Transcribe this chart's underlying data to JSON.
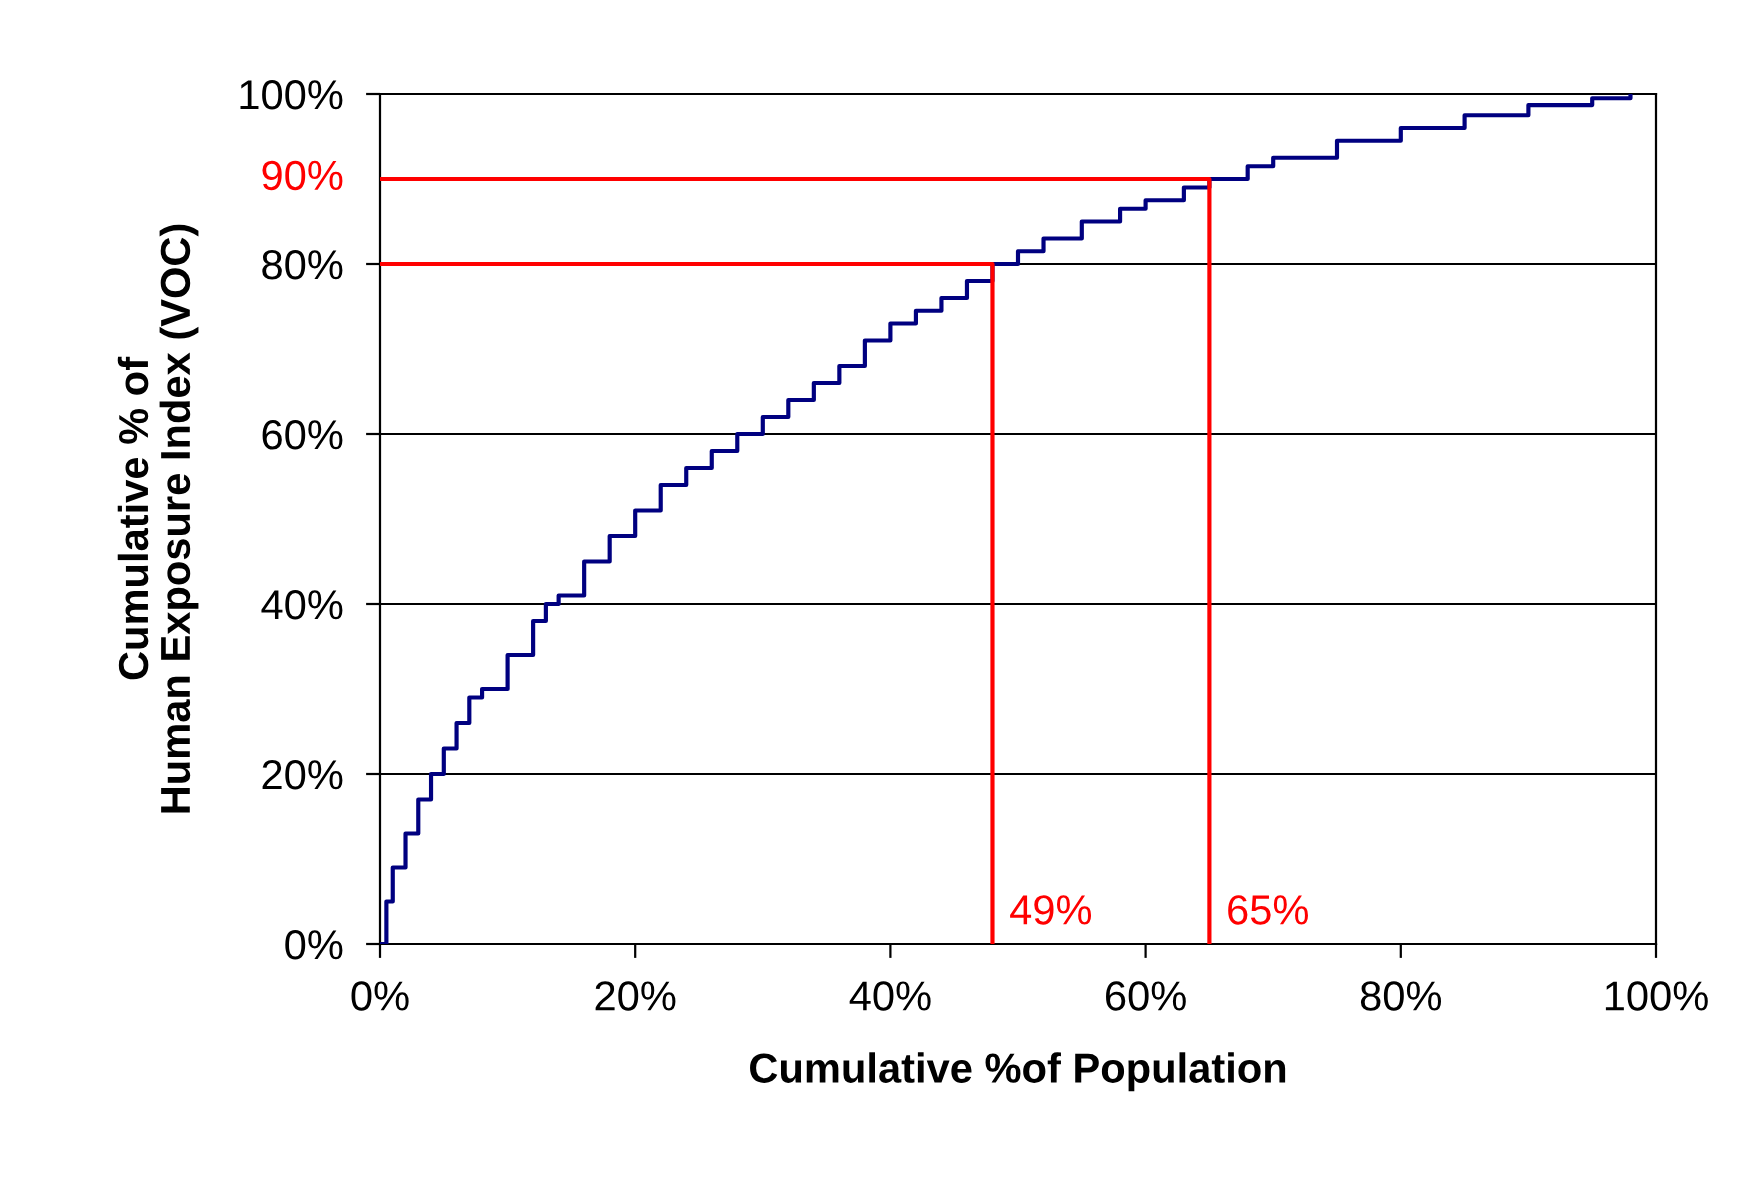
{
  "chart_data": {
    "type": "step",
    "xlabel": "Cumulative %of Population",
    "ylabel": "Cumulative % of\nHuman Exposure Index (VOC)",
    "xlim": [
      0,
      100
    ],
    "ylim": [
      0,
      100
    ],
    "xticks": [
      {
        "value": 0,
        "label": "0%"
      },
      {
        "value": 20,
        "label": "20%"
      },
      {
        "value": 40,
        "label": "40%"
      },
      {
        "value": 60,
        "label": "60%"
      },
      {
        "value": 80,
        "label": "80%"
      },
      {
        "value": 100,
        "label": "100%"
      }
    ],
    "yticks": [
      {
        "value": 0,
        "label": "0%"
      },
      {
        "value": 20,
        "label": "20%"
      },
      {
        "value": 40,
        "label": "40%"
      },
      {
        "value": 60,
        "label": "60%"
      },
      {
        "value": 80,
        "label": "80%"
      },
      {
        "value": 100,
        "label": "100%"
      }
    ],
    "grid": "y",
    "series": [
      {
        "color": "#000080",
        "x": [
          0,
          0.5,
          1,
          2,
          3,
          4,
          5,
          6,
          7,
          8,
          10,
          12,
          13,
          14,
          16,
          18,
          20,
          22,
          24,
          26,
          28,
          30,
          32,
          34,
          36,
          38,
          40,
          42,
          44,
          46,
          48,
          50,
          52,
          55,
          58,
          60,
          63,
          65,
          68,
          70,
          75,
          80,
          85,
          90,
          95,
          98
        ],
        "values": [
          0,
          5,
          9,
          13,
          17,
          20,
          23,
          26,
          29,
          30,
          34,
          38,
          40,
          41,
          45,
          48,
          51,
          54,
          56,
          58,
          60,
          62,
          64,
          66,
          68,
          71,
          73,
          74.5,
          76,
          78,
          80,
          81.5,
          83,
          85,
          86.5,
          87.5,
          89,
          90,
          91.5,
          92.5,
          94.5,
          96,
          97.5,
          98.7,
          99.5,
          100
        ]
      },
      {
        "type": "line",
        "color": "#ff0000",
        "x": [
          0,
          48,
          48
        ],
        "values": [
          80,
          80,
          0
        ]
      },
      {
        "type": "line",
        "color": "#ff0000",
        "x": [
          0,
          65,
          65
        ],
        "values": [
          90,
          90,
          0
        ]
      }
    ],
    "annotations": [
      {
        "text": "49%",
        "x": 48,
        "y": 0
      },
      {
        "text": "65%",
        "x": 65,
        "y": 0
      },
      {
        "text": "90%",
        "x": 0,
        "y": 90
      }
    ]
  }
}
